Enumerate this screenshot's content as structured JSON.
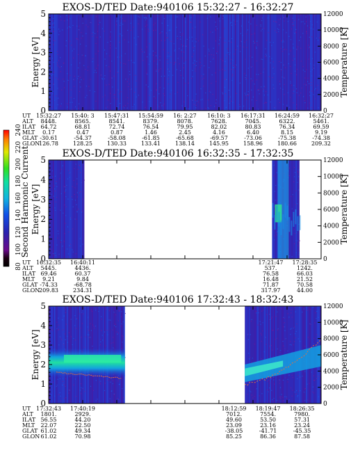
{
  "colorbar": {
    "label": "Second Harmonic Current",
    "ticks": [
      "80",
      "100",
      "120",
      "140",
      "160",
      "180",
      "200",
      "220",
      "240"
    ]
  },
  "row_labels": [
    "UT",
    "ALT",
    "ILAT",
    "MLT",
    "GLAT",
    "GLON"
  ],
  "chart_data": [
    {
      "type": "heatmap",
      "title": "EXOS-D/TED   Date:940106  15:32:27 - 16:32:27",
      "ylabel": "Energy [eV]",
      "ylim": [
        0,
        5
      ],
      "yticks": [
        "0",
        "1",
        "2",
        "3",
        "4",
        "5"
      ],
      "y2label": "Temperature [K]",
      "y2lim": [
        0,
        12000
      ],
      "y2ticks": [
        "0",
        "2000",
        "4000",
        "6000",
        "8000",
        "10000",
        "12000"
      ],
      "data_segments": [
        [
          0,
          1
        ]
      ],
      "ephemeris": [
        {
          "pos": 0.0,
          "UT": "15:32:27",
          "ALT": "8448.",
          "ILAT": "64.72",
          "MLT": "0.17",
          "GLAT": "-30.61",
          "GLON": "126.78"
        },
        {
          "pos": 0.125,
          "UT": "15:40: 3",
          "ALT": "8565.",
          "ILAT": "68.81",
          "MLT": "0.47",
          "GLAT": "-54.37",
          "GLON": "128.25"
        },
        {
          "pos": 0.25,
          "UT": "15:47:31",
          "ALT": "8541.",
          "ILAT": "72.74",
          "MLT": "0.87",
          "GLAT": "-58.08",
          "GLON": "130.33"
        },
        {
          "pos": 0.375,
          "UT": "15:54:59",
          "ALT": "8379.",
          "ILAT": "76.54",
          "MLT": "1.46",
          "GLAT": "-61.85",
          "GLON": "133.41"
        },
        {
          "pos": 0.5,
          "UT": "16: 2:27",
          "ALT": "8078.",
          "ILAT": "79.95",
          "MLT": "2.45",
          "GLAT": "-65.68",
          "GLON": "138.14"
        },
        {
          "pos": 0.625,
          "UT": "16:10: 3",
          "ALT": "7628.",
          "ILAT": "82.02",
          "MLT": "4.16",
          "GLAT": "-69.57",
          "GLON": "145.95"
        },
        {
          "pos": 0.75,
          "UT": "16:17:31",
          "ALT": "7045.",
          "ILAT": "80.83",
          "MLT": "6.40",
          "GLAT": "-73.06",
          "GLON": "158.96"
        },
        {
          "pos": 0.875,
          "UT": "16:24:59",
          "ALT": "6322.",
          "ILAT": "76.34",
          "MLT": "8.15",
          "GLAT": "-75.38",
          "GLON": "180.66"
        },
        {
          "pos": 1.0,
          "UT": "16:32:27",
          "ALT": "5461.",
          "ILAT": "69.59",
          "MLT": "9.19",
          "GLAT": "-74.38",
          "GLON": "209.32"
        }
      ]
    },
    {
      "type": "heatmap",
      "title": "EXOS-D/TED   Date:940106  16:32:35 - 17:32:35",
      "ylabel": "Energy [eV]",
      "ylim": [
        0,
        5
      ],
      "yticks": [
        "0",
        "1",
        "2",
        "3",
        "4",
        "5"
      ],
      "y2label": "Temperature [K]",
      "y2lim": [
        0,
        12000
      ],
      "y2ticks": [
        "0",
        "2000",
        "4000",
        "6000",
        "8000",
        "10000",
        "12000"
      ],
      "data_segments": [
        [
          0,
          0.13
        ],
        [
          0.82,
          0.92
        ]
      ],
      "ephemeris": [
        {
          "pos": 0.0,
          "UT": "16:32:35",
          "ALT": "5445.",
          "ILAT": "69.46",
          "MLT": "9.21",
          "GLAT": "-74.33",
          "GLON": "209.83"
        },
        {
          "pos": 0.125,
          "UT": "16:40:11",
          "ALT": "4436.",
          "ILAT": "60.37",
          "MLT": "9.84",
          "GLAT": "-68.78",
          "GLON": "234.31"
        },
        {
          "pos": 0.815,
          "UT": "17:21:47",
          "ALT": "537.",
          "ILAT": "76.58",
          "MLT": "16.48",
          "GLAT": "71.87",
          "GLON": "317.97"
        },
        {
          "pos": 0.94,
          "UT": "17:28:35",
          "ALT": "1242.",
          "ILAT": "66.03",
          "MLT": "21.52",
          "GLAT": "70.58",
          "GLON": "44.00"
        }
      ]
    },
    {
      "type": "heatmap",
      "title": "EXOS-D/TED   Date:940106  17:32:43 - 18:32:43",
      "ylabel": "Energy [eV]",
      "ylim": [
        0,
        5
      ],
      "yticks": [
        "0",
        "1",
        "2",
        "3",
        "4",
        "5"
      ],
      "y2label": "Temperature [K]",
      "y2lim": [
        0,
        12000
      ],
      "y2ticks": [
        "0",
        "2000",
        "4000",
        "6000",
        "8000",
        "10000",
        "12000"
      ],
      "data_segments": [
        [
          0,
          0.28
        ],
        [
          0.72,
          1
        ]
      ],
      "ephemeris": [
        {
          "pos": 0.0,
          "UT": "17:32:43",
          "ALT": "1801.",
          "ILAT": "56.55",
          "MLT": "22.07",
          "GLAT": "61.02",
          "GLON": "61.02"
        },
        {
          "pos": 0.125,
          "UT": "17:40:19",
          "ALT": "2929.",
          "ILAT": "44.20",
          "MLT": "22.50",
          "GLAT": "49.34",
          "GLON": "70.98"
        },
        {
          "pos": 0.68,
          "UT": "18:12:59",
          "ALT": "7012.",
          "ILAT": "49.60",
          "MLT": "23.09",
          "GLAT": "-38.05",
          "GLON": "85.25"
        },
        {
          "pos": 0.805,
          "UT": "18:19:47",
          "ALT": "7554.",
          "ILAT": "53.50",
          "MLT": "23.16",
          "GLAT": "-41.71",
          "GLON": "86.36"
        },
        {
          "pos": 0.93,
          "UT": "18:26:35",
          "ALT": "7980.",
          "ILAT": "57.31",
          "MLT": "23.24",
          "GLAT": "-45.35",
          "GLON": "87.58"
        }
      ]
    }
  ]
}
